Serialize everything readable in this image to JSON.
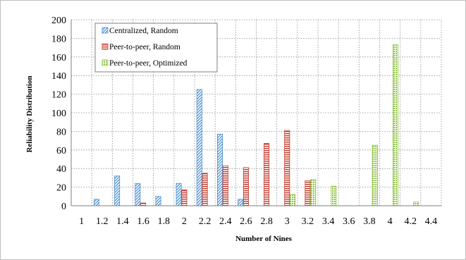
{
  "chart_data": {
    "type": "bar",
    "title": "",
    "xlabel": "Number of Nines",
    "ylabel": "Reliability Distribution",
    "ylim": [
      0,
      200
    ],
    "yticks": [
      0,
      20,
      40,
      60,
      80,
      100,
      120,
      140,
      160,
      180,
      200
    ],
    "grid": "dotted, horizontal and vertical",
    "legend_position": "top-left",
    "categories": [
      "1",
      "1.2",
      "1.4",
      "1.6",
      "1.8",
      "2",
      "2.2",
      "2.4",
      "2.6",
      "2.8",
      "3",
      "3.2",
      "3.4",
      "3.6",
      "3.8",
      "4",
      "4.2",
      "4.4"
    ],
    "series": [
      {
        "name": "Centralized, Random",
        "color": "#4a8fd0",
        "pattern": "diagonal-stripes",
        "values": [
          0,
          7,
          32,
          24,
          10,
          24,
          125,
          77,
          7,
          0,
          0,
          0,
          0,
          0,
          0,
          0,
          0,
          0
        ]
      },
      {
        "name": "Peer-to-peer, Random",
        "color": "#c0392b",
        "pattern": "horizontal-stripes",
        "values": [
          0,
          0,
          0,
          3,
          0,
          17,
          35,
          43,
          41,
          67,
          81,
          27,
          0,
          0,
          0,
          0,
          0,
          0
        ]
      },
      {
        "name": "Peer-to-peer, Optimized",
        "color": "#8cbf3f",
        "pattern": "dotted",
        "values": [
          0,
          0,
          0,
          0,
          0,
          0,
          0,
          0,
          0,
          0,
          12,
          28,
          21,
          0,
          65,
          173,
          4,
          0
        ]
      }
    ]
  }
}
